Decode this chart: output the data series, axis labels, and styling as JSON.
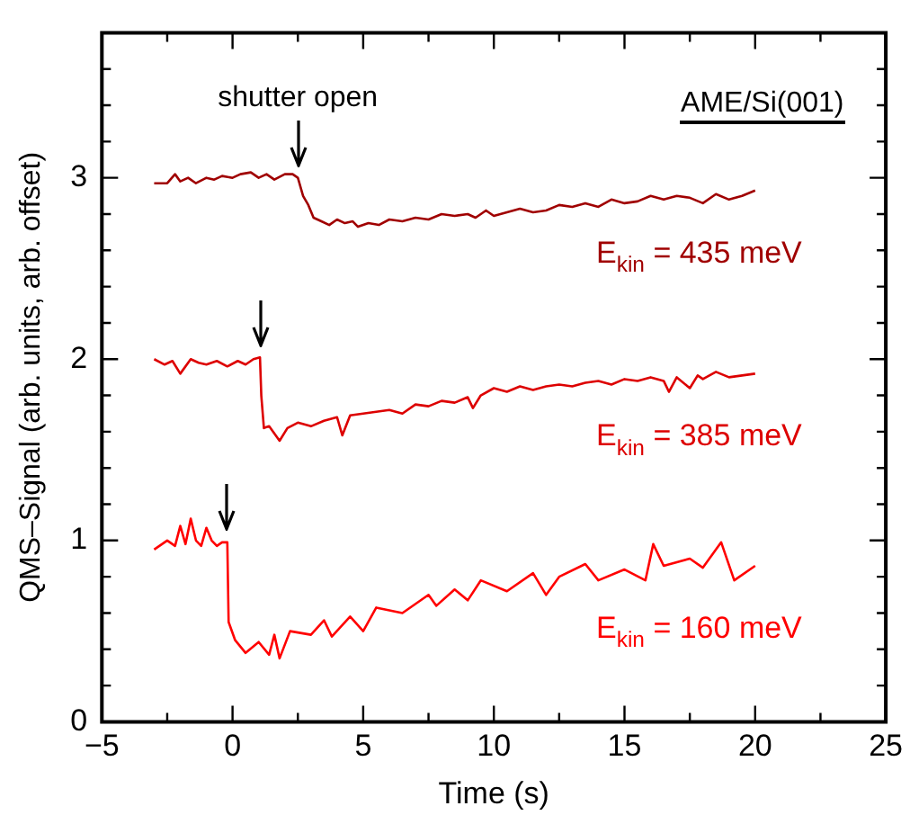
{
  "chart_data": {
    "type": "line",
    "xlabel": "Time (s)",
    "ylabel": "QMS–Signal (arb. units, arb. offset)",
    "xlim": [
      -5,
      25
    ],
    "xticks": [
      -5,
      {
        "value": -2.5,
        "label": null
      },
      0,
      {
        "value": 2.5,
        "label": null
      },
      5,
      {
        "value": 7.5,
        "label": null
      },
      10,
      {
        "value": 12.5,
        "label": null
      },
      15,
      {
        "value": 17.5,
        "label": null
      },
      20,
      {
        "value": 22.5,
        "label": null
      },
      25
    ],
    "ylim": [
      0,
      3.8
    ],
    "yticks": [
      0,
      {
        "value": 0.2,
        "label": null
      },
      {
        "value": 0.4,
        "label": null
      },
      {
        "value": 0.6,
        "label": null
      },
      {
        "value": 0.8,
        "label": null
      },
      1,
      {
        "value": 1.2,
        "label": null
      },
      {
        "value": 1.4,
        "label": null
      },
      {
        "value": 1.6,
        "label": null
      },
      {
        "value": 1.8,
        "label": null
      },
      2,
      {
        "value": 2.2,
        "label": null
      },
      {
        "value": 2.4,
        "label": null
      },
      {
        "value": 2.6,
        "label": null
      },
      {
        "value": 2.8,
        "label": null
      },
      3,
      {
        "value": 3.2,
        "label": null
      },
      {
        "value": 3.4,
        "label": null
      },
      {
        "value": 3.6,
        "label": null
      }
    ],
    "grid": false,
    "legend": false,
    "marker": "none",
    "line_style": "solid",
    "annotations": [
      "AME/Si(001)",
      "shutter open"
    ],
    "series": [
      {
        "name": "E$_{kin}$ = 435 meV",
        "color": "#a00000",
        "x": [
          -3,
          -2.5,
          -2.2,
          -2,
          -1.7,
          -1.4,
          -1,
          -0.7,
          -0.4,
          0,
          0.3,
          0.7,
          1,
          1.3,
          1.6,
          2,
          2.3,
          2.5,
          2.7,
          2.9,
          3.1,
          3.4,
          3.7,
          4,
          4.3,
          4.6,
          4.8,
          5.2,
          5.6,
          6,
          6.5,
          7,
          7.5,
          8,
          8.5,
          9,
          9.3,
          9.7,
          10,
          10.5,
          11,
          11.5,
          12,
          12.5,
          13,
          13.5,
          14,
          14.5,
          15,
          15.5,
          16,
          16.5,
          17,
          17.5,
          18,
          18.5,
          19,
          19.5,
          20
        ],
        "values": [
          2.97,
          2.97,
          3.02,
          2.98,
          3,
          2.97,
          3,
          2.99,
          3.01,
          3,
          3.02,
          3.03,
          3,
          3.02,
          2.99,
          3.02,
          3.02,
          3,
          2.9,
          2.85,
          2.78,
          2.76,
          2.74,
          2.77,
          2.75,
          2.76,
          2.73,
          2.75,
          2.74,
          2.77,
          2.76,
          2.78,
          2.77,
          2.8,
          2.79,
          2.8,
          2.78,
          2.82,
          2.79,
          2.81,
          2.83,
          2.81,
          2.82,
          2.85,
          2.84,
          2.86,
          2.84,
          2.88,
          2.86,
          2.87,
          2.9,
          2.88,
          2.9,
          2.89,
          2.86,
          2.91,
          2.88,
          2.9,
          2.93
        ]
      },
      {
        "name": "E$_{kin}$ = 385 meV",
        "color": "#dd0000",
        "x": [
          -3,
          -2.6,
          -2.3,
          -2,
          -1.6,
          -1.3,
          -1,
          -0.6,
          -0.2,
          0.2,
          0.5,
          0.8,
          1.05,
          1.1,
          1.2,
          1.4,
          1.8,
          2.1,
          2.5,
          3,
          3.5,
          4,
          4.2,
          4.5,
          5,
          5.5,
          6,
          6.5,
          7,
          7.5,
          8,
          8.5,
          9,
          9.2,
          9.5,
          10,
          10.5,
          11,
          11.5,
          12,
          12.5,
          13,
          13.5,
          14,
          14.5,
          15,
          15.5,
          16,
          16.5,
          16.7,
          17,
          17.5,
          17.8,
          18,
          18.5,
          19,
          19.5,
          20
        ],
        "values": [
          2,
          1.97,
          1.99,
          1.92,
          2,
          1.98,
          1.97,
          1.99,
          1.96,
          1.99,
          1.97,
          2,
          2.01,
          1.8,
          1.62,
          1.63,
          1.55,
          1.62,
          1.65,
          1.63,
          1.66,
          1.68,
          1.58,
          1.69,
          1.7,
          1.71,
          1.72,
          1.7,
          1.75,
          1.74,
          1.77,
          1.76,
          1.79,
          1.73,
          1.8,
          1.84,
          1.82,
          1.85,
          1.83,
          1.85,
          1.86,
          1.85,
          1.87,
          1.88,
          1.86,
          1.89,
          1.88,
          1.9,
          1.88,
          1.82,
          1.9,
          1.84,
          1.91,
          1.89,
          1.93,
          1.9,
          1.91,
          1.92
        ]
      },
      {
        "name": "E$_{kin}$ = 160 meV",
        "color": "#ff0000",
        "x": [
          -3,
          -2.5,
          -2.2,
          -2,
          -1.8,
          -1.6,
          -1.4,
          -1.2,
          -1,
          -0.8,
          -0.6,
          -0.4,
          -0.2,
          -0.15,
          0.1,
          0.5,
          1,
          1.4,
          1.6,
          1.8,
          2.2,
          3,
          3.5,
          3.8,
          4.5,
          5,
          5.5,
          6.5,
          7.5,
          7.8,
          8.5,
          9,
          9.5,
          10.5,
          11.5,
          12,
          12.5,
          13.5,
          14,
          15,
          15.8,
          16.1,
          16.5,
          17.5,
          18,
          18.7,
          19.2,
          20
        ],
        "values": [
          0.95,
          1,
          0.97,
          1.08,
          0.98,
          1.12,
          1,
          0.97,
          1.07,
          1,
          0.97,
          0.99,
          0.99,
          0.55,
          0.45,
          0.38,
          0.44,
          0.37,
          0.48,
          0.35,
          0.5,
          0.48,
          0.56,
          0.47,
          0.58,
          0.5,
          0.63,
          0.6,
          0.7,
          0.64,
          0.73,
          0.67,
          0.78,
          0.72,
          0.82,
          0.7,
          0.8,
          0.87,
          0.78,
          0.84,
          0.78,
          0.98,
          0.86,
          0.9,
          0.85,
          0.99,
          0.78,
          0.86
        ]
      }
    ]
  }
}
